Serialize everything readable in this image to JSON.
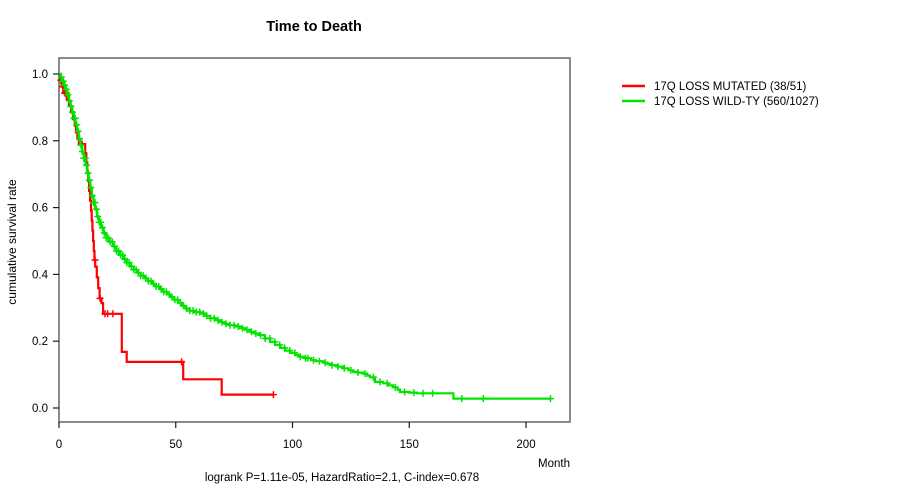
{
  "title": "Time to Death",
  "footer": "logrank P=1.11e-05, HazardRatio=2.1, C-index=0.678",
  "colors": {
    "mutated": "#FF0000",
    "wildtype": "#00E400",
    "axis_box": "#6e6e6e",
    "tick": "#1a1a1a",
    "text": "#000000",
    "background": "#FFFFFF"
  },
  "chart_data": {
    "type": "line",
    "subtype": "kaplan-meier-step-curve",
    "title": "Time to Death",
    "xlabel": "Month",
    "ylabel": "cumulative survival rate",
    "annotation": "logrank P=1.11e-05, HazardRatio=2.1, C-index=0.678",
    "xlim": [
      0,
      219
    ],
    "ylim": [
      0,
      1.0
    ],
    "x_ticks": [
      0,
      50,
      100,
      150,
      200
    ],
    "y_ticks": [
      "0.0",
      "0.2",
      "0.4",
      "0.6",
      "0.8",
      "1.0"
    ],
    "grid": false,
    "legend_position": "right-outside",
    "legend": [
      {
        "label": "17Q LOSS MUTATED (38/51)",
        "color": "#FF0000"
      },
      {
        "label": "17Q LOSS WILD-TY (560/1027)",
        "color": "#00E400"
      }
    ],
    "series": [
      {
        "name": "17Q LOSS MUTATED (38/51)",
        "color": "#FF0000",
        "n_total": 51,
        "n_events": 38,
        "points": [
          [
            0,
            1.0
          ],
          [
            0.5,
            0.981
          ],
          [
            1.1,
            0.962
          ],
          [
            1.8,
            0.943
          ],
          [
            3.3,
            0.924
          ],
          [
            4.3,
            0.904
          ],
          [
            5.2,
            0.885
          ],
          [
            6.0,
            0.865
          ],
          [
            6.8,
            0.845
          ],
          [
            7.3,
            0.825
          ],
          [
            7.9,
            0.806
          ],
          [
            8.5,
            0.79
          ],
          [
            11.2,
            0.763
          ],
          [
            11.7,
            0.735
          ],
          [
            12.1,
            0.707
          ],
          [
            12.5,
            0.679
          ],
          [
            12.9,
            0.65
          ],
          [
            13.3,
            0.621
          ],
          [
            13.7,
            0.591
          ],
          [
            14.0,
            0.561
          ],
          [
            14.3,
            0.531
          ],
          [
            14.6,
            0.5
          ],
          [
            14.9,
            0.47
          ],
          [
            15.2,
            0.443
          ],
          [
            15.5,
            0.423
          ],
          [
            16.2,
            0.391
          ],
          [
            16.8,
            0.359
          ],
          [
            17.4,
            0.328
          ],
          [
            18.2,
            0.314
          ],
          [
            18.9,
            0.282
          ],
          [
            26.9,
            0.168
          ],
          [
            29.0,
            0.138
          ],
          [
            53.2,
            0.086
          ],
          [
            69.7,
            0.04
          ],
          [
            91.8,
            0.04
          ]
        ],
        "censor_months": [
          0.8,
          1.6,
          2.4,
          3.1,
          9.9,
          15.4,
          17.6,
          19.7,
          20.8,
          23.1,
          52.5,
          91.8
        ]
      },
      {
        "name": "17Q LOSS WILD-TY (560/1027)",
        "color": "#00E400",
        "n_total": 1027,
        "n_events": 560,
        "points": [
          [
            0,
            1.0
          ],
          [
            0.8,
            0.99
          ],
          [
            1.5,
            0.978
          ],
          [
            2.2,
            0.966
          ],
          [
            2.9,
            0.954
          ],
          [
            3.6,
            0.938
          ],
          [
            4.3,
            0.92
          ],
          [
            5.0,
            0.903
          ],
          [
            5.7,
            0.886
          ],
          [
            6.4,
            0.867
          ],
          [
            7.1,
            0.848
          ],
          [
            7.8,
            0.828
          ],
          [
            8.5,
            0.806
          ],
          [
            9.2,
            0.787
          ],
          [
            9.9,
            0.768
          ],
          [
            10.6,
            0.748
          ],
          [
            11.3,
            0.727
          ],
          [
            12.0,
            0.703
          ],
          [
            12.7,
            0.682
          ],
          [
            13.4,
            0.66
          ],
          [
            14.1,
            0.636
          ],
          [
            14.8,
            0.615
          ],
          [
            15.5,
            0.595
          ],
          [
            16.3,
            0.573
          ],
          [
            17.1,
            0.556
          ],
          [
            18.0,
            0.54
          ],
          [
            19.0,
            0.524
          ],
          [
            20.2,
            0.51
          ],
          [
            21.5,
            0.498
          ],
          [
            23.0,
            0.484
          ],
          [
            24.5,
            0.47
          ],
          [
            26.0,
            0.458
          ],
          [
            27.5,
            0.446
          ],
          [
            29.0,
            0.435
          ],
          [
            30.5,
            0.424
          ],
          [
            32.0,
            0.414
          ],
          [
            33.5,
            0.405
          ],
          [
            35.0,
            0.396
          ],
          [
            36.6,
            0.388
          ],
          [
            38.2,
            0.38
          ],
          [
            39.8,
            0.372
          ],
          [
            41.4,
            0.364
          ],
          [
            43.0,
            0.356
          ],
          [
            44.6,
            0.348
          ],
          [
            46.2,
            0.34
          ],
          [
            47.8,
            0.332
          ],
          [
            49.4,
            0.324
          ],
          [
            51.0,
            0.315
          ],
          [
            52.6,
            0.306
          ],
          [
            54.2,
            0.298
          ],
          [
            56.0,
            0.291
          ],
          [
            58.0,
            0.287
          ],
          [
            60.4,
            0.283
          ],
          [
            62.5,
            0.276
          ],
          [
            64.7,
            0.269
          ],
          [
            66.8,
            0.263
          ],
          [
            69.0,
            0.257
          ],
          [
            71.1,
            0.252
          ],
          [
            73.2,
            0.248
          ],
          [
            75.3,
            0.244
          ],
          [
            77.5,
            0.239
          ],
          [
            79.6,
            0.234
          ],
          [
            81.8,
            0.228
          ],
          [
            84.0,
            0.223
          ],
          [
            86.1,
            0.218
          ],
          [
            88.2,
            0.208
          ],
          [
            90.4,
            0.198
          ],
          [
            92.5,
            0.189
          ],
          [
            94.7,
            0.18
          ],
          [
            96.8,
            0.172
          ],
          [
            99.0,
            0.165
          ],
          [
            101.1,
            0.159
          ],
          [
            103.2,
            0.153
          ],
          [
            105.3,
            0.149
          ],
          [
            108.0,
            0.143
          ],
          [
            110.0,
            0.14
          ],
          [
            113.1,
            0.136
          ],
          [
            115.0,
            0.132
          ],
          [
            116.9,
            0.128
          ],
          [
            119.3,
            0.124
          ],
          [
            121.7,
            0.119
          ],
          [
            124.0,
            0.113
          ],
          [
            126.0,
            0.108
          ],
          [
            128.0,
            0.106
          ],
          [
            130.2,
            0.103
          ],
          [
            132.0,
            0.097
          ],
          [
            133.2,
            0.092
          ],
          [
            135.3,
            0.078
          ],
          [
            138.8,
            0.074
          ],
          [
            141.0,
            0.068
          ],
          [
            143.0,
            0.062
          ],
          [
            145.0,
            0.055
          ],
          [
            146.0,
            0.048
          ],
          [
            150.0,
            0.046
          ],
          [
            153.3,
            0.044
          ],
          [
            168.9,
            0.028
          ],
          [
            210.5,
            0.028
          ]
        ],
        "censor_months": [
          1.0,
          1.8,
          2.5,
          3.1,
          3.8,
          4.4,
          5.1,
          5.8,
          6.4,
          7.0,
          7.6,
          8.2,
          8.8,
          9.4,
          10.0,
          10.6,
          11.2,
          11.8,
          12.4,
          13.0,
          13.6,
          14.2,
          14.8,
          15.4,
          16.0,
          16.6,
          17.2,
          17.9,
          18.6,
          19.4,
          20.2,
          21.0,
          21.9,
          22.8,
          23.7,
          24.6,
          25.5,
          26.4,
          27.3,
          28.2,
          29.1,
          30.0,
          31.0,
          32.0,
          33.0,
          34.0,
          35.0,
          36.1,
          37.2,
          38.3,
          39.4,
          40.5,
          41.6,
          42.7,
          43.8,
          44.9,
          46.0,
          47.2,
          48.4,
          49.6,
          50.8,
          52.0,
          53.3,
          54.6,
          56.0,
          57.4,
          58.8,
          60.3,
          61.8,
          63.3,
          64.9,
          66.5,
          68.1,
          69.8,
          71.5,
          73.2,
          75.0,
          76.8,
          78.6,
          80.5,
          82.4,
          84.3,
          86.3,
          88.3,
          90.3,
          92.4,
          94.5,
          96.6,
          98.8,
          101.0,
          103.3,
          105.6,
          106.6,
          109.0,
          111.5,
          114.0,
          116.9,
          119.5,
          122.2,
          125.0,
          128.0,
          131.0,
          134.6,
          137.5,
          140.5,
          144.0,
          148.0,
          152.0,
          155.9,
          160.0,
          172.5,
          181.7,
          210.5
        ]
      }
    ]
  }
}
